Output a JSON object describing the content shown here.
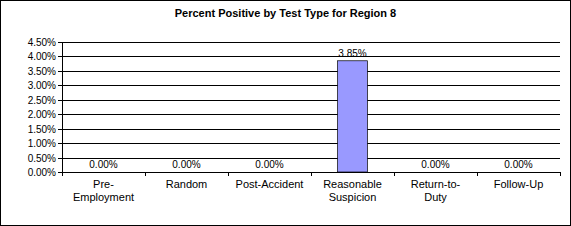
{
  "chart_data": {
    "type": "bar",
    "title": "Percent Positive by Test Type for Region 8",
    "categories": [
      "Pre-Employment",
      "Random",
      "Post-Accident",
      "Reasonable Suspicion",
      "Return-to-Duty",
      "Follow-Up"
    ],
    "values": [
      0,
      0,
      0,
      3.85,
      0,
      0
    ],
    "value_labels": [
      "0.00%",
      "0.00%",
      "0.00%",
      "3.85%",
      "0.00%",
      "0.00%"
    ],
    "data_labels": true,
    "color": "#9999ff",
    "ylim": [
      0,
      4.5
    ],
    "yticks": [
      {
        "value": 0,
        "label": "0.00%"
      },
      {
        "value": 0.5,
        "label": "0.50%"
      },
      {
        "value": 1,
        "label": "1.00%"
      },
      {
        "value": 1.5,
        "label": "1.50%"
      },
      {
        "value": 2,
        "label": "2.00%"
      },
      {
        "value": 2.5,
        "label": "2.50%"
      },
      {
        "value": 3,
        "label": "3.00%"
      },
      {
        "value": 3.5,
        "label": "3.50%"
      },
      {
        "value": 4,
        "label": "4.00%"
      },
      {
        "value": 4.5,
        "label": "4.50%"
      }
    ],
    "grid": true
  }
}
